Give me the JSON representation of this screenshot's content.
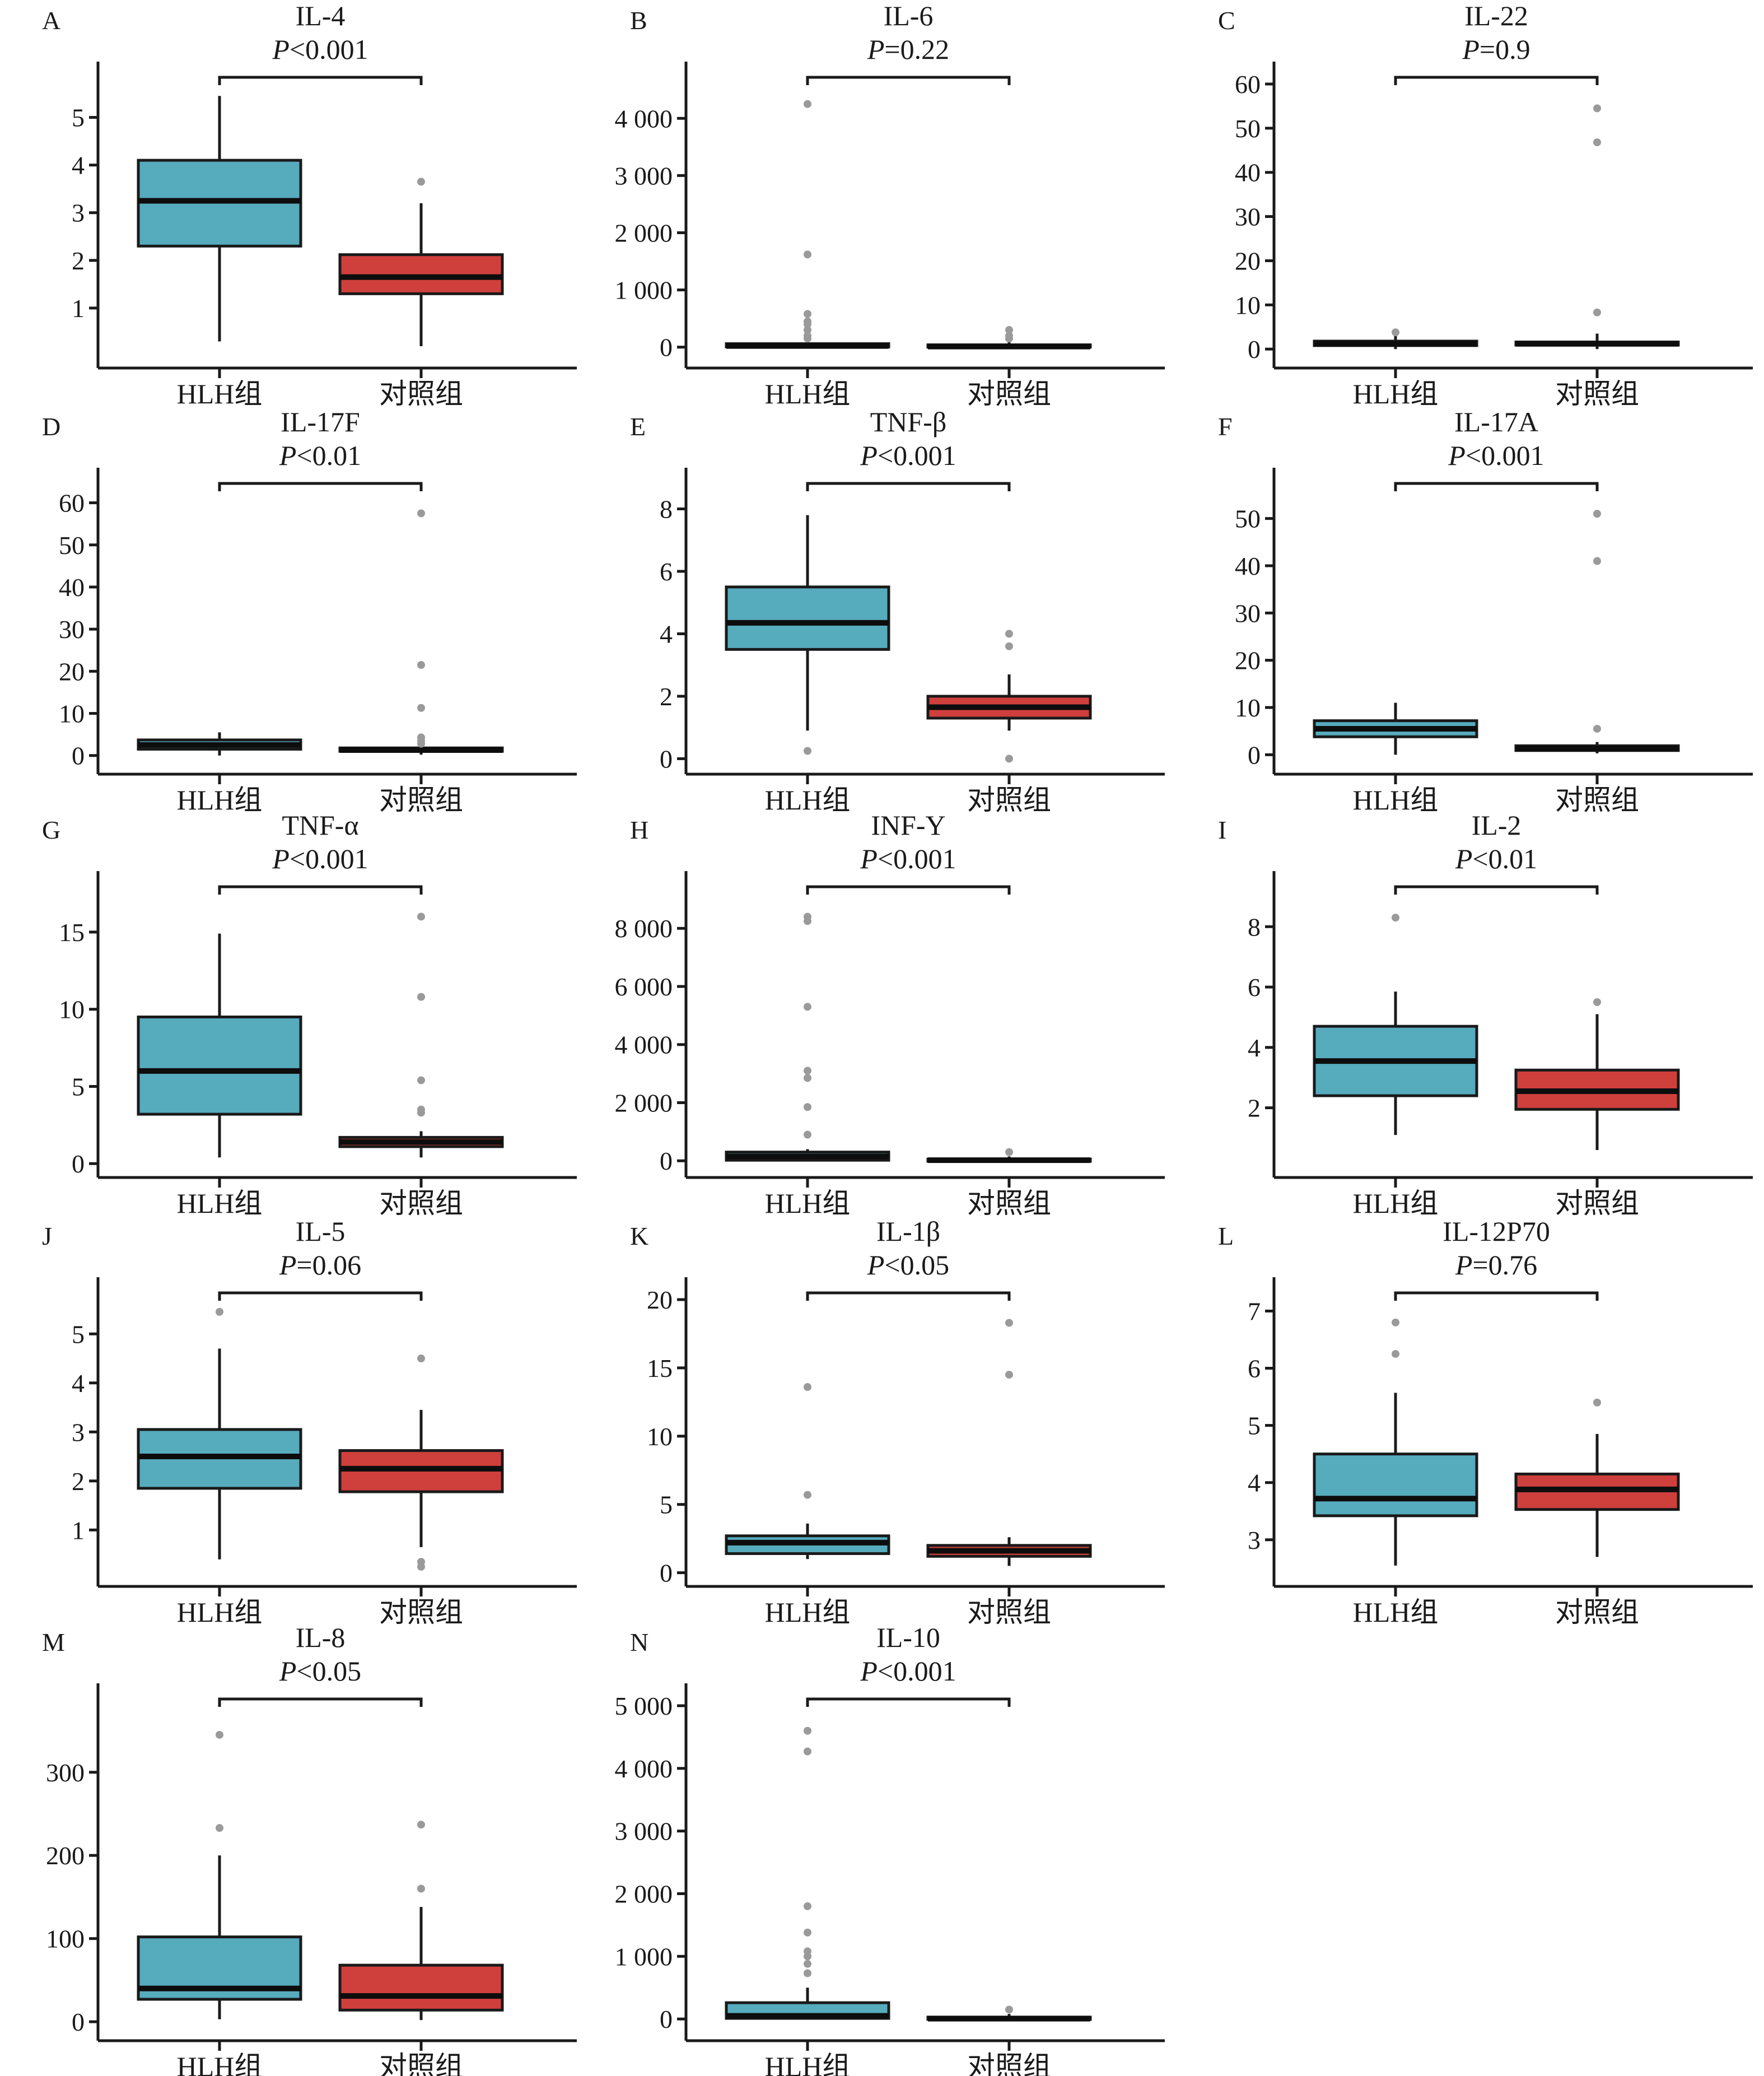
{
  "figure": {
    "group_labels": [
      "HLH组",
      "对照组"
    ],
    "colors": {
      "hlh": "#56abbd",
      "control": "#cf3f3c",
      "outlier": "#9a9a9a",
      "line": "#1a1a1a"
    }
  },
  "chart_data": [
    {
      "type": "box",
      "panel": "A",
      "title": "IL-4",
      "p_prefix": "P",
      "p_text": "<0.001",
      "categories": [
        "HLH组",
        "对照组"
      ],
      "ylim": [
        0,
        5.7
      ],
      "yticks": [
        1,
        2,
        3,
        4,
        5
      ],
      "ytick_labels": [
        "1",
        "2",
        "3",
        "4",
        "5"
      ],
      "series": [
        {
          "name": "HLH组",
          "whisker_low": 0.3,
          "q1": 2.3,
          "median": 3.25,
          "q3": 4.1,
          "whisker_high": 5.45,
          "outliers": []
        },
        {
          "name": "对照组",
          "whisker_low": 0.2,
          "q1": 1.3,
          "median": 1.65,
          "q3": 2.12,
          "whisker_high": 3.2,
          "outliers": [
            3.65
          ]
        }
      ]
    },
    {
      "type": "box",
      "panel": "B",
      "title": "IL-6",
      "p_prefix": "P",
      "p_text": "=0.22",
      "categories": [
        "HLH组",
        "对照组"
      ],
      "ylim": [
        -150,
        4600
      ],
      "yticks": [
        0,
        1000,
        2000,
        3000,
        4000
      ],
      "ytick_labels": [
        "0",
        "1 000",
        "2 000",
        "3 000",
        "4 000"
      ],
      "series": [
        {
          "name": "HLH组",
          "whisker_low": 0,
          "q1": 5,
          "median": 20,
          "q3": 60,
          "whisker_high": 120,
          "outliers": [
            4250,
            1620,
            580,
            450,
            400,
            300,
            200,
            150
          ]
        },
        {
          "name": "对照组",
          "whisker_low": 0,
          "q1": 2,
          "median": 10,
          "q3": 40,
          "whisker_high": 90,
          "outliers": [
            300,
            200,
            150
          ]
        }
      ]
    },
    {
      "type": "box",
      "panel": "C",
      "title": "IL-22",
      "p_prefix": "P",
      "p_text": "=0.9",
      "categories": [
        "HLH组",
        "对照组"
      ],
      "ylim": [
        -1.5,
        60
      ],
      "yticks": [
        0,
        10,
        20,
        30,
        40,
        50,
        60
      ],
      "ytick_labels": [
        "0",
        "10",
        "20",
        "30",
        "40",
        "50",
        "60"
      ],
      "series": [
        {
          "name": "HLH组",
          "whisker_low": 0,
          "q1": 0.8,
          "median": 1.2,
          "q3": 1.8,
          "whisker_high": 3.0,
          "outliers": [
            3.8
          ]
        },
        {
          "name": "对照组",
          "whisker_low": 0,
          "q1": 0.9,
          "median": 1.2,
          "q3": 1.6,
          "whisker_high": 3.5,
          "outliers": [
            54.5,
            46.8,
            8.3
          ]
        }
      ]
    },
    {
      "type": "box",
      "panel": "D",
      "title": "IL-17F",
      "p_prefix": "P",
      "p_text": "<0.01",
      "categories": [
        "HLH组",
        "对照组"
      ],
      "ylim": [
        -1.5,
        63
      ],
      "yticks": [
        0,
        10,
        20,
        30,
        40,
        50,
        60
      ],
      "ytick_labels": [
        "0",
        "10",
        "20",
        "30",
        "40",
        "50",
        "60"
      ],
      "series": [
        {
          "name": "HLH组",
          "whisker_low": 0,
          "q1": 1.5,
          "median": 2.5,
          "q3": 3.7,
          "whisker_high": 5.5,
          "outliers": []
        },
        {
          "name": "对照组",
          "whisker_low": 0.2,
          "q1": 1.0,
          "median": 1.3,
          "q3": 1.8,
          "whisker_high": 2.5,
          "outliers": [
            57.5,
            21.5,
            11.3,
            4.3,
            3.5,
            2.8
          ]
        }
      ]
    },
    {
      "type": "box",
      "panel": "E",
      "title": "TNF-β",
      "p_prefix": "P",
      "p_text": "<0.001",
      "categories": [
        "HLH组",
        "对照组"
      ],
      "ylim": [
        -0.1,
        8.6
      ],
      "yticks": [
        0,
        2,
        4,
        6,
        8
      ],
      "ytick_labels": [
        "0",
        "2",
        "4",
        "6",
        "8"
      ],
      "series": [
        {
          "name": "HLH组",
          "whisker_low": 0.9,
          "q1": 3.5,
          "median": 4.35,
          "q3": 5.5,
          "whisker_high": 7.8,
          "outliers": [
            0.25
          ]
        },
        {
          "name": "对照组",
          "whisker_low": 0.9,
          "q1": 1.3,
          "median": 1.65,
          "q3": 2.0,
          "whisker_high": 2.7,
          "outliers": [
            4.0,
            3.6,
            0.0
          ]
        }
      ]
    },
    {
      "type": "box",
      "panel": "F",
      "title": "IL-17A",
      "p_prefix": "P",
      "p_text": "<0.001",
      "categories": [
        "HLH组",
        "对照组"
      ],
      "ylim": [
        -1.5,
        56
      ],
      "yticks": [
        0,
        10,
        20,
        30,
        40,
        50
      ],
      "ytick_labels": [
        "0",
        "10",
        "20",
        "30",
        "40",
        "50"
      ],
      "series": [
        {
          "name": "HLH组",
          "whisker_low": 0,
          "q1": 3.8,
          "median": 5.5,
          "q3": 7.2,
          "whisker_high": 11,
          "outliers": []
        },
        {
          "name": "对照组",
          "whisker_low": 0.3,
          "q1": 0.9,
          "median": 1.3,
          "q3": 1.9,
          "whisker_high": 2.7,
          "outliers": [
            51,
            41,
            5.5
          ]
        }
      ]
    },
    {
      "type": "box",
      "panel": "G",
      "title": "TNF-α",
      "p_prefix": "P",
      "p_text": "<0.001",
      "categories": [
        "HLH组",
        "对照组"
      ],
      "ylim": [
        -0.1,
        17.5
      ],
      "yticks": [
        0,
        5,
        10,
        15
      ],
      "ytick_labels": [
        "0",
        "5",
        "10",
        "15"
      ],
      "series": [
        {
          "name": "HLH组",
          "whisker_low": 0.4,
          "q1": 3.2,
          "median": 6.0,
          "q3": 9.5,
          "whisker_high": 14.9,
          "outliers": []
        },
        {
          "name": "对照组",
          "whisker_low": 0.4,
          "q1": 1.1,
          "median": 1.4,
          "q3": 1.7,
          "whisker_high": 2.1,
          "outliers": [
            16,
            10.8,
            5.4,
            3.5,
            3.3
          ]
        }
      ]
    },
    {
      "type": "box",
      "panel": "H",
      "title": "INF-Y",
      "p_prefix": "P",
      "p_text": "<0.001",
      "categories": [
        "HLH组",
        "对照组"
      ],
      "ylim": [
        -150,
        9200
      ],
      "yticks": [
        0,
        2000,
        4000,
        6000,
        8000
      ],
      "ytick_labels": [
        "0",
        "2 000",
        "4 000",
        "6 000",
        "8 000"
      ],
      "series": [
        {
          "name": "HLH组",
          "whisker_low": 0,
          "q1": 20,
          "median": 150,
          "q3": 300,
          "whisker_high": 400,
          "outliers": [
            8400,
            8250,
            5300,
            3100,
            2850,
            1850,
            900
          ]
        },
        {
          "name": "对照组",
          "whisker_low": 0,
          "q1": 0,
          "median": 20,
          "q3": 60,
          "whisker_high": 150,
          "outliers": [
            300
          ]
        }
      ]
    },
    {
      "type": "box",
      "panel": "I",
      "title": "IL-2",
      "p_prefix": "P",
      "p_text": "<0.01",
      "categories": [
        "HLH组",
        "对照组"
      ],
      "ylim": [
        0.1,
        9.1
      ],
      "yticks": [
        2,
        4,
        6,
        8
      ],
      "ytick_labels": [
        "2",
        "4",
        "6",
        "8"
      ],
      "series": [
        {
          "name": "HLH组",
          "whisker_low": 1.1,
          "q1": 2.4,
          "median": 3.55,
          "q3": 4.7,
          "whisker_high": 5.85,
          "outliers": [
            8.3
          ]
        },
        {
          "name": "对照组",
          "whisker_low": 0.6,
          "q1": 1.95,
          "median": 2.55,
          "q3": 3.25,
          "whisker_high": 5.1,
          "outliers": [
            5.5
          ]
        }
      ]
    },
    {
      "type": "box",
      "panel": "J",
      "title": "IL-5",
      "p_prefix": "P",
      "p_text": "=0.06",
      "categories": [
        "HLH组",
        "对照组"
      ],
      "ylim": [
        0.1,
        5.7
      ],
      "yticks": [
        1,
        2,
        3,
        4,
        5
      ],
      "ytick_labels": [
        "1",
        "2",
        "3",
        "4",
        "5"
      ],
      "series": [
        {
          "name": "HLH组",
          "whisker_low": 0.4,
          "q1": 1.85,
          "median": 2.5,
          "q3": 3.05,
          "whisker_high": 4.7,
          "outliers": [
            5.45
          ]
        },
        {
          "name": "对照组",
          "whisker_low": 0.65,
          "q1": 1.78,
          "median": 2.25,
          "q3": 2.62,
          "whisker_high": 3.45,
          "outliers": [
            4.5,
            0.35,
            0.25
          ]
        }
      ]
    },
    {
      "type": "box",
      "panel": "K",
      "title": "IL-1β",
      "p_prefix": "P",
      "p_text": "<0.05",
      "categories": [
        "HLH组",
        "对照组"
      ],
      "ylim": [
        -0.1,
        20
      ],
      "yticks": [
        0,
        5,
        10,
        15,
        20
      ],
      "ytick_labels": [
        "0",
        "5",
        "10",
        "15",
        "20"
      ],
      "series": [
        {
          "name": "HLH组",
          "whisker_low": 1.0,
          "q1": 1.4,
          "median": 2.2,
          "q3": 2.7,
          "whisker_high": 3.6,
          "outliers": [
            13.6,
            5.7
          ]
        },
        {
          "name": "对照组",
          "whisker_low": 0.5,
          "q1": 1.2,
          "median": 1.6,
          "q3": 2.0,
          "whisker_high": 2.6,
          "outliers": [
            18.3,
            14.5
          ]
        }
      ]
    },
    {
      "type": "box",
      "panel": "L",
      "title": "IL-12P70",
      "p_prefix": "P",
      "p_text": "=0.76",
      "categories": [
        "HLH组",
        "对照组"
      ],
      "ylim": [
        2.4,
        7.2
      ],
      "yticks": [
        3,
        4,
        5,
        6,
        7
      ],
      "ytick_labels": [
        "3",
        "4",
        "5",
        "6",
        "7"
      ],
      "series": [
        {
          "name": "HLH组",
          "whisker_low": 2.55,
          "q1": 3.42,
          "median": 3.72,
          "q3": 4.5,
          "whisker_high": 5.57,
          "outliers": [
            6.8,
            6.25
          ]
        },
        {
          "name": "对照组",
          "whisker_low": 2.7,
          "q1": 3.53,
          "median": 3.88,
          "q3": 4.15,
          "whisker_high": 4.85,
          "outliers": [
            5.4
          ]
        }
      ]
    },
    {
      "type": "box",
      "panel": "M",
      "title": "IL-8",
      "p_prefix": "P",
      "p_text": "<0.05",
      "categories": [
        "HLH组",
        "对照组"
      ],
      "ylim": [
        -8,
        380
      ],
      "yticks": [
        0,
        100,
        200,
        300
      ],
      "ytick_labels": [
        "0",
        "100",
        "200",
        "300"
      ],
      "series": [
        {
          "name": "HLH组",
          "whisker_low": 3,
          "q1": 27,
          "median": 40,
          "q3": 102,
          "whisker_high": 200,
          "outliers": [
            345,
            233
          ]
        },
        {
          "name": "对照组",
          "whisker_low": 2,
          "q1": 14,
          "median": 31,
          "q3": 68,
          "whisker_high": 138,
          "outliers": [
            237,
            160
          ]
        }
      ]
    },
    {
      "type": "box",
      "panel": "N",
      "title": "IL-10",
      "p_prefix": "P",
      "p_text": "<0.001",
      "categories": [
        "HLH组",
        "对照组"
      ],
      "ylim": [
        -150,
        5000
      ],
      "yticks": [
        0,
        1000,
        2000,
        3000,
        4000,
        5000
      ],
      "ytick_labels": [
        "0",
        "1 000",
        "2 000",
        "3 000",
        "4 000",
        "5 000"
      ],
      "series": [
        {
          "name": "HLH组",
          "whisker_low": 0,
          "q1": 10,
          "median": 50,
          "q3": 260,
          "whisker_high": 500,
          "outliers": [
            4600,
            4270,
            1800,
            1380,
            1080,
            1000,
            880,
            730
          ]
        },
        {
          "name": "对照组",
          "whisker_low": 0,
          "q1": 0,
          "median": 5,
          "q3": 30,
          "whisker_high": 80,
          "outliers": [
            150
          ]
        }
      ]
    }
  ]
}
